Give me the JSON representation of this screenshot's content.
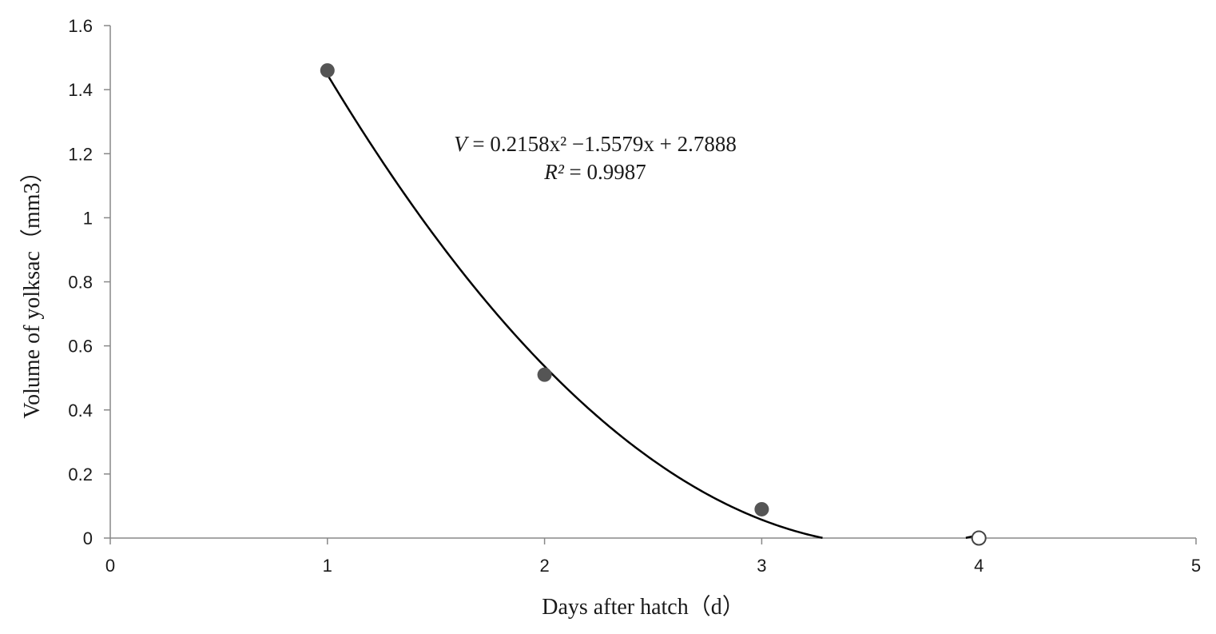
{
  "chart_data": {
    "type": "scatter",
    "title": "",
    "xlabel": "Days after hatch（d）",
    "ylabel": "Volume of yolksac（mm3）",
    "xlim": [
      0,
      5
    ],
    "ylim": [
      0,
      1.6
    ],
    "x_ticks": [
      "0",
      "1",
      "2",
      "3",
      "4",
      "5"
    ],
    "y_ticks": [
      "0",
      "0.2",
      "0.4",
      "0.6",
      "0.8",
      "1",
      "1.2",
      "1.4",
      "1.6"
    ],
    "grid": false,
    "legend": "none",
    "points_filled": [
      {
        "x": 1,
        "y": 1.46
      },
      {
        "x": 2,
        "y": 0.51
      },
      {
        "x": 3,
        "y": 0.09
      }
    ],
    "points_open": [
      {
        "x": 4,
        "y": 0
      }
    ],
    "trendline": {
      "type": "polynomial",
      "coefficients": {
        "a": 0.2158,
        "b": -1.5579,
        "c": 2.7888
      },
      "equation_lhs": "V",
      "equation_rhs": " = 0.2158x² −1.5579x + 2.7888",
      "r2_label": "R²",
      "r2_value": " = 0.9987"
    },
    "colors": {
      "filled_point": "#555555",
      "open_point": "#444444",
      "line": "#000000",
      "axis": "#888888"
    }
  }
}
